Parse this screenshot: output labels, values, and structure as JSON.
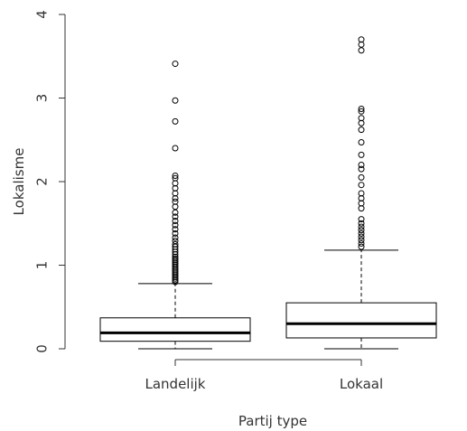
{
  "chart_data": {
    "type": "boxplot",
    "title": "",
    "xlabel": "Partij type",
    "ylabel": "Lokalisme",
    "ylim": [
      0,
      4
    ],
    "yticks": [
      0,
      1,
      2,
      3,
      4
    ],
    "categories": [
      "Landelijk",
      "Lokaal"
    ],
    "boxes": [
      {
        "name": "Landelijk",
        "whisker_low": 0.0,
        "q1": 0.09,
        "median": 0.19,
        "q3": 0.37,
        "whisker_high": 0.78,
        "outliers": [
          0.8,
          0.82,
          0.84,
          0.86,
          0.88,
          0.9,
          0.92,
          0.94,
          0.96,
          0.98,
          1.0,
          1.02,
          1.04,
          1.06,
          1.08,
          1.1,
          1.13,
          1.16,
          1.19,
          1.22,
          1.25,
          1.29,
          1.33,
          1.38,
          1.43,
          1.48,
          1.53,
          1.58,
          1.63,
          1.7,
          1.76,
          1.8,
          1.86,
          1.92,
          1.98,
          2.04,
          2.07,
          2.4,
          2.72,
          2.97,
          3.41
        ]
      },
      {
        "name": "Lokaal",
        "whisker_low": 0.0,
        "q1": 0.13,
        "median": 0.3,
        "q3": 0.55,
        "whisker_high": 1.18,
        "outliers": [
          1.22,
          1.26,
          1.3,
          1.34,
          1.38,
          1.42,
          1.46,
          1.5,
          1.55,
          1.68,
          1.74,
          1.8,
          1.86,
          1.96,
          2.05,
          2.15,
          2.2,
          2.32,
          2.47,
          2.62,
          2.7,
          2.76,
          2.84,
          2.87,
          3.57,
          3.64,
          3.7
        ]
      }
    ]
  }
}
